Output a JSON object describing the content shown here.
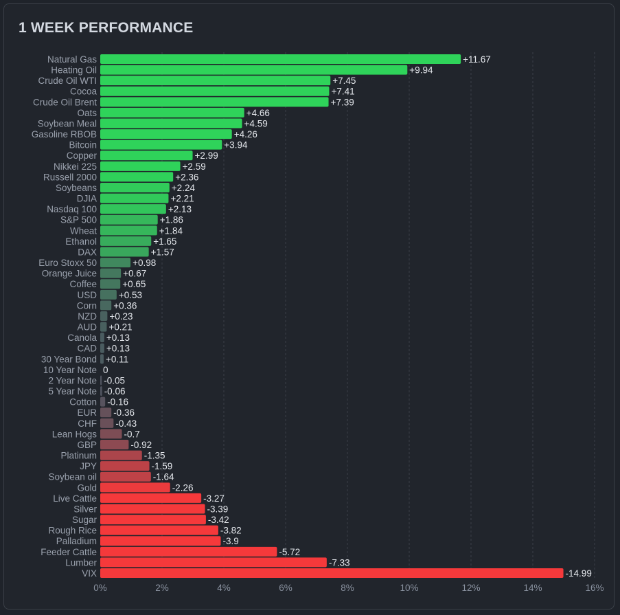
{
  "title": "1 WEEK PERFORMANCE",
  "chart_data": {
    "type": "bar",
    "orientation": "horizontal",
    "title": "1 WEEK PERFORMANCE",
    "xlabel": "",
    "ylabel": "",
    "xlim": [
      0,
      16
    ],
    "x_ticks": [
      "0%",
      "2%",
      "4%",
      "6%",
      "8%",
      "10%",
      "12%",
      "14%",
      "16%"
    ],
    "bar_length": "absolute value",
    "grid": "vertical dashed",
    "colors": {
      "positive": "#2fd35a",
      "negative": "#f5393b",
      "neutral": "#4c5560"
    },
    "categories": [
      "Natural Gas",
      "Heating Oil",
      "Crude Oil WTI",
      "Cocoa",
      "Crude Oil Brent",
      "Oats",
      "Soybean Meal",
      "Gasoline RBOB",
      "Bitcoin",
      "Copper",
      "Nikkei 225",
      "Russell 2000",
      "Soybeans",
      "DJIA",
      "Nasdaq 100",
      "S&P 500",
      "Wheat",
      "Ethanol",
      "DAX",
      "Euro Stoxx 50",
      "Orange Juice",
      "Coffee",
      "USD",
      "Corn",
      "NZD",
      "AUD",
      "Canola",
      "CAD",
      "30 Year Bond",
      "10 Year Note",
      "2 Year Note",
      "5 Year Note",
      "Cotton",
      "EUR",
      "CHF",
      "Lean Hogs",
      "GBP",
      "Platinum",
      "JPY",
      "Soybean oil",
      "Gold",
      "Live Cattle",
      "Silver",
      "Sugar",
      "Rough Rice",
      "Palladium",
      "Feeder Cattle",
      "Lumber",
      "VIX"
    ],
    "values": [
      11.67,
      9.94,
      7.45,
      7.41,
      7.39,
      4.66,
      4.59,
      4.26,
      3.94,
      2.99,
      2.59,
      2.36,
      2.24,
      2.21,
      2.13,
      1.86,
      1.84,
      1.65,
      1.57,
      0.98,
      0.67,
      0.65,
      0.53,
      0.36,
      0.23,
      0.21,
      0.13,
      0.13,
      0.11,
      0,
      -0.05,
      -0.06,
      -0.16,
      -0.36,
      -0.43,
      -0.7,
      -0.92,
      -1.35,
      -1.59,
      -1.64,
      -2.26,
      -3.27,
      -3.39,
      -3.42,
      -3.82,
      -3.9,
      -5.72,
      -7.33,
      -14.99
    ],
    "value_labels": [
      "+11.67",
      "+9.94",
      "+7.45",
      "+7.41",
      "+7.39",
      "+4.66",
      "+4.59",
      "+4.26",
      "+3.94",
      "+2.99",
      "+2.59",
      "+2.36",
      "+2.24",
      "+2.21",
      "+2.13",
      "+1.86",
      "+1.84",
      "+1.65",
      "+1.57",
      "+0.98",
      "+0.67",
      "+0.65",
      "+0.53",
      "+0.36",
      "+0.23",
      "+0.21",
      "+0.13",
      "+0.13",
      "+0.11",
      "0",
      "-0.05",
      "-0.06",
      "-0.16",
      "-0.36",
      "-0.43",
      "-0.7",
      "-0.92",
      "-1.35",
      "-1.59",
      "-1.64",
      "-2.26",
      "-3.27",
      "-3.39",
      "-3.42",
      "-3.82",
      "-3.9",
      "-5.72",
      "-7.33",
      "-14.99"
    ]
  }
}
